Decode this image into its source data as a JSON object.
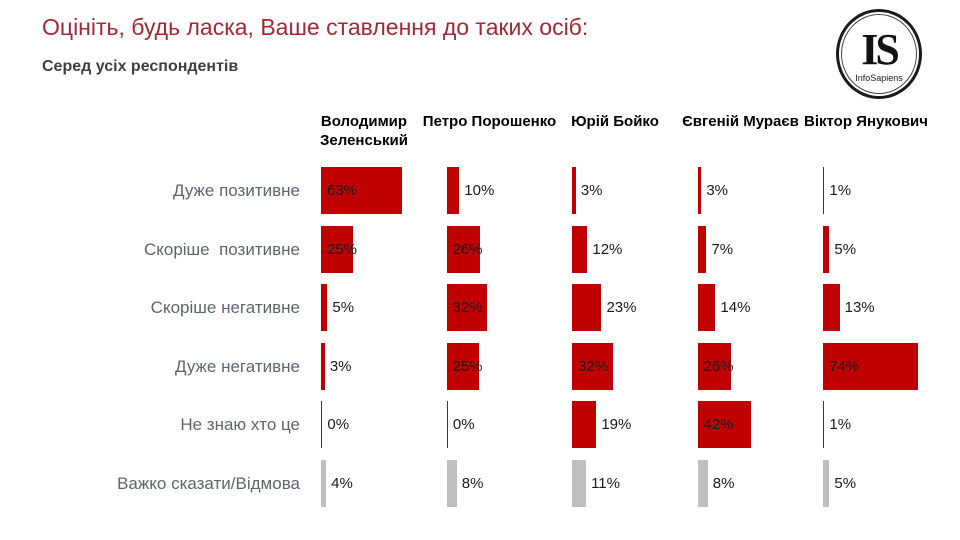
{
  "title": "Оцініть, будь ласка, Ваше ставлення до таких осіб:",
  "subtitle": "Серед усіх респондентів",
  "logo": {
    "initials": "IS",
    "name": "InfoSapiens"
  },
  "colors": {
    "bar_red": "#c00000",
    "bar_neutral_gray": "#bfbfbf",
    "title_red": "#a42834",
    "category_label_gray_blue": "#5b6670",
    "value_text": "#1a1a1a"
  },
  "chart_data": {
    "type": "bar",
    "orientation": "horizontal",
    "layout_hint": "small-multiples, one mini bar chart per politician, shared category rows, data labels shown, no axes/gridlines",
    "value_suffix": "%",
    "xlim": [
      0,
      100
    ],
    "categories": [
      "Дуже позитивне",
      "Скоріше  позитивне",
      "Скоріше негативне",
      "Дуже негативне",
      "Не знаю хто це",
      "Важко сказати/Відмова"
    ],
    "neutral_category_index": 5,
    "series": [
      {
        "name": "Володимир Зеленський",
        "values": [
          63,
          25,
          5,
          3,
          0,
          4
        ]
      },
      {
        "name": "Петро Порошенко",
        "values": [
          10,
          26,
          32,
          25,
          0,
          8
        ]
      },
      {
        "name": "Юрій Бойко",
        "values": [
          3,
          12,
          23,
          32,
          19,
          11
        ]
      },
      {
        "name": "Євгеній Мураєв",
        "values": [
          3,
          7,
          14,
          26,
          42,
          8
        ]
      },
      {
        "name": "Віктор Янукович",
        "values": [
          1,
          5,
          13,
          74,
          1,
          5
        ]
      }
    ]
  }
}
